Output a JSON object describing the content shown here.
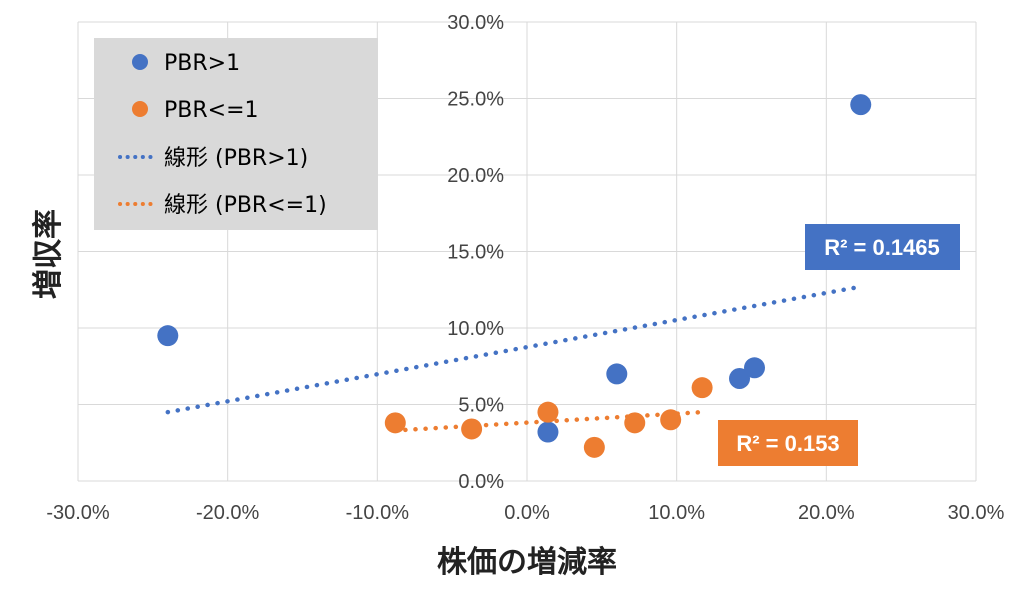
{
  "chart_data": {
    "type": "scatter",
    "xlabel": "株価の増減率",
    "ylabel": "増収率",
    "xlim": [
      -0.3,
      0.3
    ],
    "ylim": [
      0,
      0.3
    ],
    "x_ticks": [
      "-30.0%",
      "-20.0%",
      "-10.0%",
      "0.0%",
      "10.0%",
      "20.0%",
      "30.0%"
    ],
    "y_ticks": [
      "0.0%",
      "5.0%",
      "10.0%",
      "15.0%",
      "20.0%",
      "25.0%",
      "30.0%"
    ],
    "grid": true,
    "legend_placement": "top-left",
    "series": [
      {
        "name": "PBR>1",
        "color": "#4472C4",
        "points": [
          {
            "x": -0.24,
            "y": 0.095
          },
          {
            "x": 0.014,
            "y": 0.032
          },
          {
            "x": 0.06,
            "y": 0.07
          },
          {
            "x": 0.142,
            "y": 0.067
          },
          {
            "x": 0.152,
            "y": 0.074
          },
          {
            "x": 0.223,
            "y": 0.246
          }
        ]
      },
      {
        "name": "PBR<=1",
        "color": "#ED7D31",
        "points": [
          {
            "x": -0.088,
            "y": 0.038
          },
          {
            "x": -0.037,
            "y": 0.034
          },
          {
            "x": 0.014,
            "y": 0.045
          },
          {
            "x": 0.045,
            "y": 0.022
          },
          {
            "x": 0.072,
            "y": 0.038
          },
          {
            "x": 0.096,
            "y": 0.04
          },
          {
            "x": 0.117,
            "y": 0.061
          }
        ]
      }
    ],
    "trendlines": [
      {
        "name": "線形 (PBR>1)",
        "color": "#4472C4",
        "from": [
          -0.24,
          0.045
        ],
        "to": [
          0.223,
          0.127
        ],
        "r2_label": "R² = 0.1465"
      },
      {
        "name": "線形 (PBR<=1)",
        "color": "#ED7D31",
        "from": [
          -0.088,
          0.033
        ],
        "to": [
          0.117,
          0.045
        ],
        "r2_label": "R² = 0.153"
      }
    ]
  }
}
